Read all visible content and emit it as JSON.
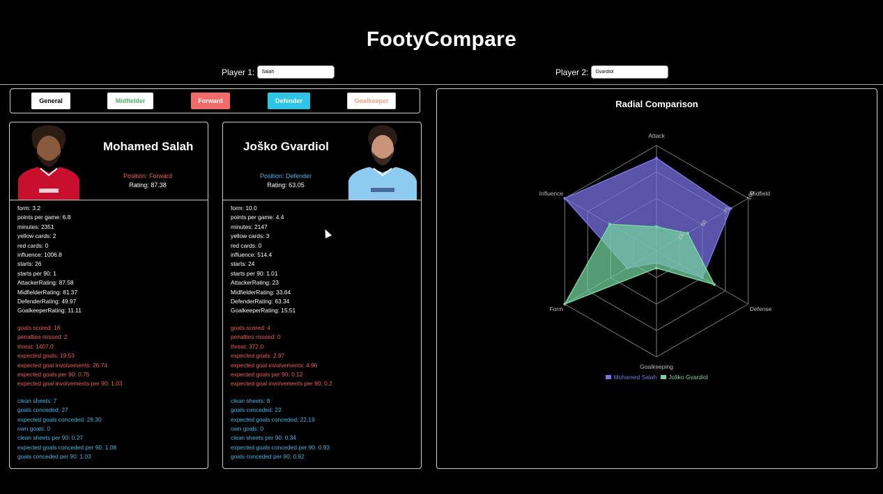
{
  "app": {
    "title": "FootyCompare"
  },
  "inputs": {
    "player1": {
      "label": "Player 1:",
      "value": "Salah"
    },
    "player2": {
      "label": "Player 2:",
      "value": "Gvardiol"
    }
  },
  "tabs": [
    {
      "label": "General",
      "bg": "#ffffff",
      "fg": "#000000"
    },
    {
      "label": "Midfielder",
      "bg": "#ffffff",
      "fg": "#4caf6a"
    },
    {
      "label": "Forward",
      "bg": "#f26b6b",
      "fg": "#ffffff"
    },
    {
      "label": "Defender",
      "bg": "#2ec4e6",
      "fg": "#ffffff"
    },
    {
      "label": "Goalkeeper",
      "bg": "#ffffff",
      "fg": "#f2a07a"
    }
  ],
  "colors": {
    "forward": "#ef5b5b",
    "defender": "#3fb6e8",
    "general": "#ffffff",
    "player1_series": "#7b74e8",
    "player2_series": "#74d6a0"
  },
  "players": [
    {
      "name": "Mohamed Salah",
      "position": "Position: Forward",
      "rating": "Rating: 87.38",
      "kit": "red",
      "general": [
        "form: 3.2",
        "points per game: 6.8",
        "minutes: 2351",
        "yellow cards: 2",
        "red cards: 0",
        "influence: 1006.8",
        "starts: 26",
        "starts per 90: 1",
        "AttackerRating: 87.58",
        "MidfielderRating: 81.37",
        "DefenderRating: 49.97",
        "GoalkeeperRating: 11.11"
      ],
      "attack": [
        "goals scored: 18",
        "penalties missed: 2",
        "threat: 1407.0",
        "expected goals: 19.53",
        "expected goal involvements: 26.74",
        "expected goals per 90: 0.75",
        "expected goal involvements per 90: 1.03"
      ],
      "defense": [
        "clean sheets: 7",
        "goals conceded: 27",
        "expected goals conceded: 28.30",
        "own goals: 0",
        "clean sheets per 90: 0.27",
        "expected goals conceded per 90: 1.08",
        "goals conceded per 90: 1.03"
      ]
    },
    {
      "name": "Joško Gvardiol",
      "position": "Position: Defender",
      "rating": "Rating: 63.05",
      "kit": "skyblue",
      "general": [
        "form: 10.0",
        "points per game: 4.4",
        "minutes: 2147",
        "yellow cards: 3",
        "red cards: 0",
        "influence: 514.4",
        "starts: 24",
        "starts per 90: 1.01",
        "AttackerRating: 23",
        "MidfielderRating: 33.64",
        "DefenderRating: 63.34",
        "GoalkeeperRating: 15.51"
      ],
      "attack": [
        "goals scored: 4",
        "penalties missed: 0",
        "threat: 372.0",
        "expected goals: 2.97",
        "expected goal involvements: 4.96",
        "expected goals per 90: 0.12",
        "expected goal involvements per 90: 0.2"
      ],
      "defense": [
        "clean sheets: 8",
        "goals conceded: 22",
        "expected goals conceded: 22.19",
        "own goals: 0",
        "clean sheets per 90: 0.34",
        "expected goals conceded per 90: 0.93",
        "goals conceded per 90: 0.92"
      ]
    }
  ],
  "chart_data": {
    "type": "radar",
    "title": "Radial Comparison",
    "axes": [
      "Attack",
      "Midfield",
      "Defense",
      "Goalkeeping",
      "Form",
      "Influence"
    ],
    "r_ticks": [
      "25",
      "50",
      "75",
      "100"
    ],
    "r_max": 100,
    "series": [
      {
        "name": "Mohamed Salah",
        "values": [
          88,
          81,
          50,
          11,
          32,
          100
        ]
      },
      {
        "name": "Joško Gvardiol",
        "values": [
          23,
          34,
          63,
          16,
          100,
          51
        ]
      }
    ],
    "legend_position": "bottom"
  }
}
